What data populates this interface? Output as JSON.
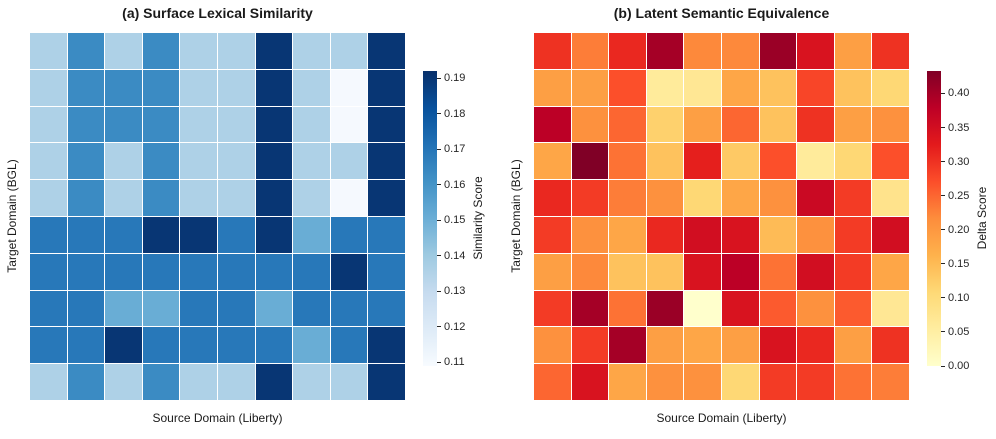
{
  "chart_data": [
    {
      "type": "heatmap",
      "panel": "a",
      "title": "(a) Surface Lexical Similarity",
      "xlabel": "Source Domain (Liberty)",
      "ylabel": "Target Domain (BGL)",
      "colorbar_label": "Similarity Score",
      "colormap": "blues",
      "vmin": 0.109,
      "vmax": 0.192,
      "colorbar_ticks": [
        0.11,
        0.12,
        0.13,
        0.14,
        0.15,
        0.16,
        0.17,
        0.18,
        0.19
      ],
      "grid_lines": true,
      "values": [
        [
          0.136,
          0.163,
          0.136,
          0.163,
          0.136,
          0.136,
          0.19,
          0.136,
          0.136,
          0.19
        ],
        [
          0.136,
          0.163,
          0.163,
          0.163,
          0.136,
          0.136,
          0.19,
          0.136,
          0.11,
          0.19
        ],
        [
          0.136,
          0.163,
          0.163,
          0.163,
          0.136,
          0.136,
          0.19,
          0.136,
          0.11,
          0.19
        ],
        [
          0.136,
          0.163,
          0.136,
          0.163,
          0.136,
          0.136,
          0.19,
          0.136,
          0.136,
          0.19
        ],
        [
          0.136,
          0.163,
          0.136,
          0.163,
          0.136,
          0.136,
          0.19,
          0.136,
          0.11,
          0.19
        ],
        [
          0.169,
          0.169,
          0.169,
          0.19,
          0.19,
          0.169,
          0.19,
          0.151,
          0.169,
          0.169
        ],
        [
          0.169,
          0.169,
          0.169,
          0.169,
          0.169,
          0.169,
          0.169,
          0.169,
          0.19,
          0.169
        ],
        [
          0.169,
          0.169,
          0.151,
          0.151,
          0.169,
          0.169,
          0.151,
          0.169,
          0.169,
          0.169
        ],
        [
          0.169,
          0.169,
          0.19,
          0.169,
          0.169,
          0.169,
          0.169,
          0.151,
          0.169,
          0.19
        ],
        [
          0.136,
          0.163,
          0.136,
          0.163,
          0.136,
          0.136,
          0.19,
          0.136,
          0.136,
          0.19
        ]
      ]
    },
    {
      "type": "heatmap",
      "panel": "b",
      "title": "(b) Latent Semantic Equivalence",
      "xlabel": "Source Domain (Liberty)",
      "ylabel": "Target Domain (BGL)",
      "colorbar_label": "Delta Score",
      "colormap": "ylorrd",
      "vmin": 0.0,
      "vmax": 0.433,
      "colorbar_ticks": [
        0.0,
        0.05,
        0.1,
        0.15,
        0.2,
        0.25,
        0.3,
        0.35,
        0.4
      ],
      "grid_lines": true,
      "values": [
        [
          0.3,
          0.23,
          0.31,
          0.4,
          0.22,
          0.22,
          0.41,
          0.34,
          0.19,
          0.3
        ],
        [
          0.19,
          0.19,
          0.27,
          0.06,
          0.07,
          0.18,
          0.14,
          0.28,
          0.14,
          0.11
        ],
        [
          0.38,
          0.21,
          0.25,
          0.12,
          0.19,
          0.25,
          0.14,
          0.3,
          0.19,
          0.21
        ],
        [
          0.18,
          0.435,
          0.24,
          0.14,
          0.32,
          0.13,
          0.27,
          0.06,
          0.11,
          0.27
        ],
        [
          0.31,
          0.29,
          0.23,
          0.21,
          0.11,
          0.18,
          0.21,
          0.36,
          0.29,
          0.08
        ],
        [
          0.29,
          0.21,
          0.18,
          0.31,
          0.35,
          0.34,
          0.15,
          0.21,
          0.29,
          0.35
        ],
        [
          0.19,
          0.22,
          0.14,
          0.14,
          0.34,
          0.38,
          0.24,
          0.35,
          0.29,
          0.18
        ],
        [
          0.29,
          0.4,
          0.24,
          0.41,
          0.0,
          0.34,
          0.26,
          0.21,
          0.26,
          0.07
        ],
        [
          0.21,
          0.29,
          0.4,
          0.19,
          0.18,
          0.19,
          0.34,
          0.31,
          0.19,
          0.3
        ],
        [
          0.25,
          0.34,
          0.18,
          0.21,
          0.21,
          0.11,
          0.29,
          0.29,
          0.24,
          0.23
        ]
      ]
    }
  ],
  "colormaps": {
    "blues": [
      "#f7fbff",
      "#deebf7",
      "#c6dbef",
      "#9ecae1",
      "#6baed6",
      "#4292c6",
      "#2171b5",
      "#08519c",
      "#08306b"
    ],
    "ylorrd": [
      "#ffffcc",
      "#ffeda0",
      "#fed976",
      "#feb24c",
      "#fd8d3c",
      "#fc4e2a",
      "#e31a1c",
      "#bd0026",
      "#800026"
    ]
  }
}
